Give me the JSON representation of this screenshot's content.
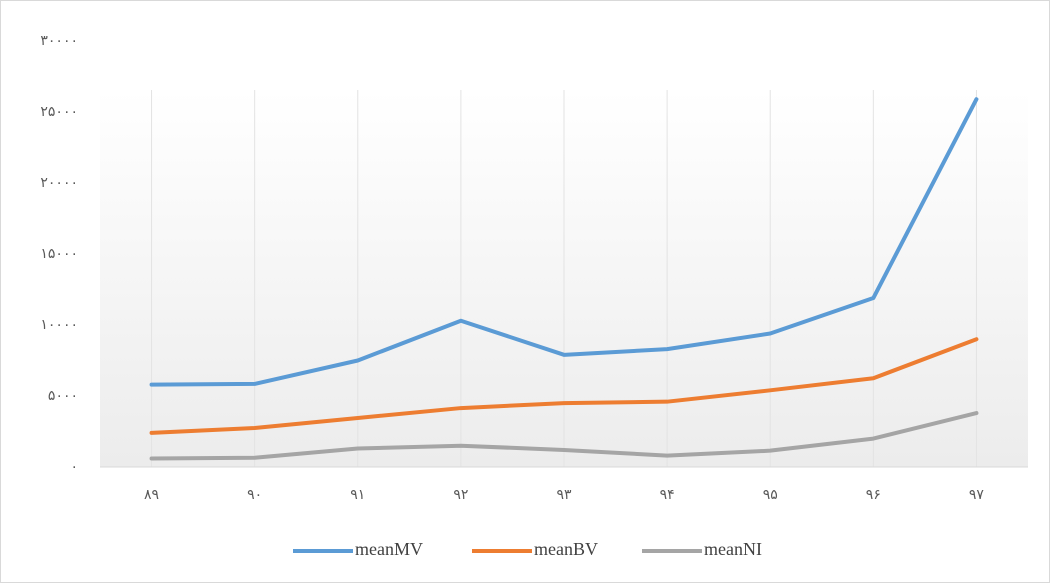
{
  "chart_data": {
    "type": "line",
    "categories": [
      "۸۹",
      "۹۰",
      "۹۱",
      "۹۲",
      "۹۳",
      "۹۴",
      "۹۵",
      "۹۶",
      "۹۷"
    ],
    "series": [
      {
        "name": "meanMV",
        "color": "#5b9bd5",
        "values": [
          5800,
          5850,
          7500,
          10300,
          7900,
          8300,
          9400,
          11900,
          25900
        ]
      },
      {
        "name": "meanBV",
        "color": "#ed7d31",
        "values": [
          2400,
          2750,
          3450,
          4150,
          4500,
          4600,
          5400,
          6250,
          9000
        ]
      },
      {
        "name": "meanNI",
        "color": "#a5a5a5",
        "values": [
          600,
          650,
          1300,
          1500,
          1200,
          800,
          1150,
          2000,
          3800
        ]
      }
    ],
    "ylim": [
      0,
      30000
    ],
    "yticks": [
      {
        "value": 0,
        "label": "۰"
      },
      {
        "value": 5000,
        "label": "۵۰۰۰"
      },
      {
        "value": 10000,
        "label": "۱۰۰۰۰"
      },
      {
        "value": 15000,
        "label": "۱۵۰۰۰"
      },
      {
        "value": 20000,
        "label": "۲۰۰۰۰"
      },
      {
        "value": 25000,
        "label": "۲۵۰۰۰"
      },
      {
        "value": 30000,
        "label": "۳۰۰۰۰"
      }
    ],
    "legend": "bottom"
  }
}
